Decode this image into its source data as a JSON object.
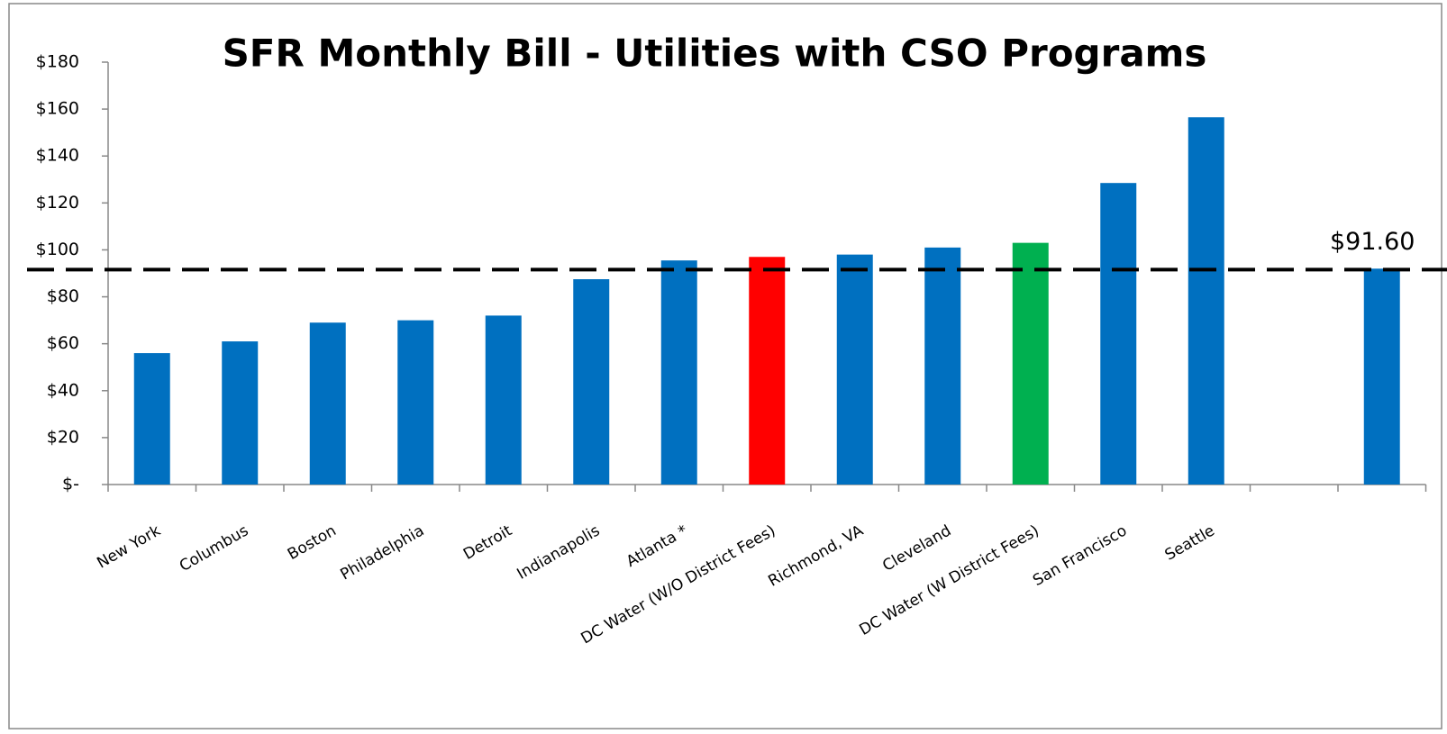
{
  "chart_data": {
    "type": "bar",
    "title": "SFR Monthly Bill - Utilities with CSO Programs",
    "categories": [
      "New York",
      "Columbus",
      "Boston",
      "Philadelphia",
      "Detroit",
      "Indianapolis",
      "Atlanta *",
      "DC Water (W/O District Fees)",
      "Richmond, VA",
      "Cleveland",
      "DC Water (W District Fees)",
      "San Francisco",
      "Seattle",
      null,
      null
    ],
    "values": [
      56,
      61,
      69,
      70,
      72,
      87.5,
      95.5,
      97,
      98,
      101,
      103,
      128.5,
      156.5,
      null,
      92
    ],
    "colors": [
      "#0070c0",
      "#0070c0",
      "#0070c0",
      "#0070c0",
      "#0070c0",
      "#0070c0",
      "#0070c0",
      "#ff0000",
      "#0070c0",
      "#0070c0",
      "#00b050",
      "#0070c0",
      "#0070c0",
      "#0070c0",
      "#0070c0"
    ],
    "ylim": [
      0,
      180
    ],
    "yticks": [
      {
        "value": 0,
        "label": "$-"
      },
      {
        "value": 20,
        "label": "$20"
      },
      {
        "value": 40,
        "label": "$40"
      },
      {
        "value": 60,
        "label": "$60"
      },
      {
        "value": 80,
        "label": "$80"
      },
      {
        "value": 100,
        "label": "$100"
      },
      {
        "value": 120,
        "label": "$120"
      },
      {
        "value": 140,
        "label": "$140"
      },
      {
        "value": 160,
        "label": "$160"
      },
      {
        "value": 180,
        "label": "$180"
      }
    ],
    "grid": false,
    "reference_line": {
      "value": 91.6,
      "label": "$91.60"
    }
  }
}
